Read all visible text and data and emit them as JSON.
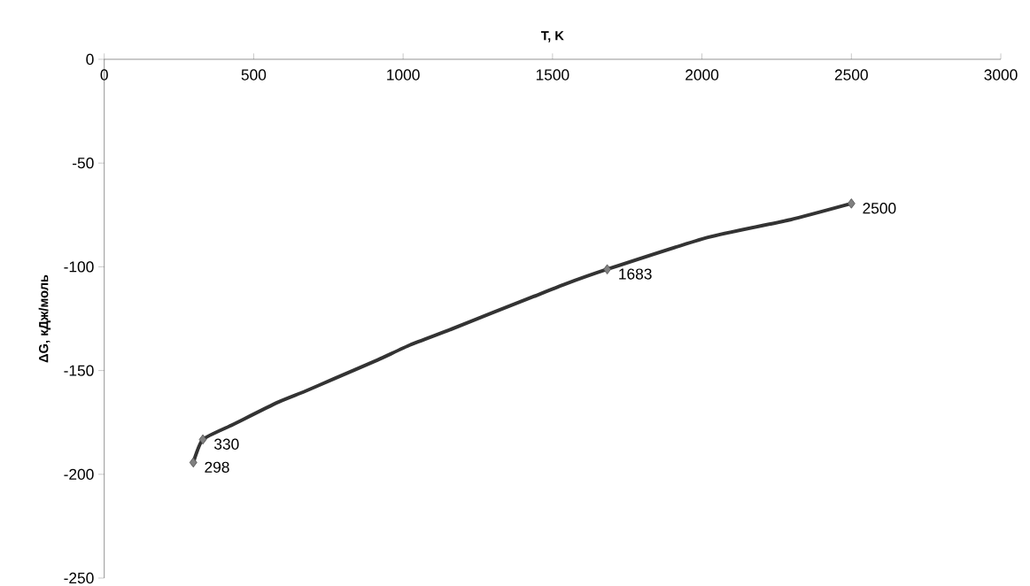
{
  "chart_data": {
    "type": "line",
    "xlabel": "T, K",
    "ylabel": "ΔG, кДж/моль",
    "xlim": [
      0,
      3000
    ],
    "xticks": [
      0,
      500,
      1000,
      1500,
      2000,
      2500,
      3000
    ],
    "ylim": [
      -250,
      0
    ],
    "yticks": [
      0,
      -50,
      -100,
      -150,
      -200,
      -250
    ],
    "series": [
      {
        "marker": "none",
        "color": "#333333",
        "x": [
          298,
          330,
          430,
          578,
          667,
          767,
          915,
          1023,
          1152,
          1300,
          1437,
          1537,
          1683,
          2020,
          2296,
          2500
        ],
        "values": [
          -194.3,
          -183.2,
          -176.1,
          -165.5,
          -160.3,
          -154.1,
          -144.9,
          -137.7,
          -130.6,
          -122.1,
          -114.3,
          -108.6,
          -101.2,
          -85.8,
          -77.3,
          -69.5
        ]
      },
      {
        "type": "scatter",
        "marker": "diamond",
        "color": "#808080",
        "x": [
          298,
          330,
          1683,
          2500
        ],
        "values": [
          -194.3,
          -183.2,
          -101.2,
          -69.5
        ]
      }
    ],
    "annotations": [
      {
        "text": "298",
        "x": 298,
        "y": -194.3
      },
      {
        "text": "330",
        "x": 330,
        "y": -183.2
      },
      {
        "text": "1683",
        "x": 1683,
        "y": -101.2
      },
      {
        "text": "2500",
        "x": 2500,
        "y": -69.5
      }
    ]
  }
}
